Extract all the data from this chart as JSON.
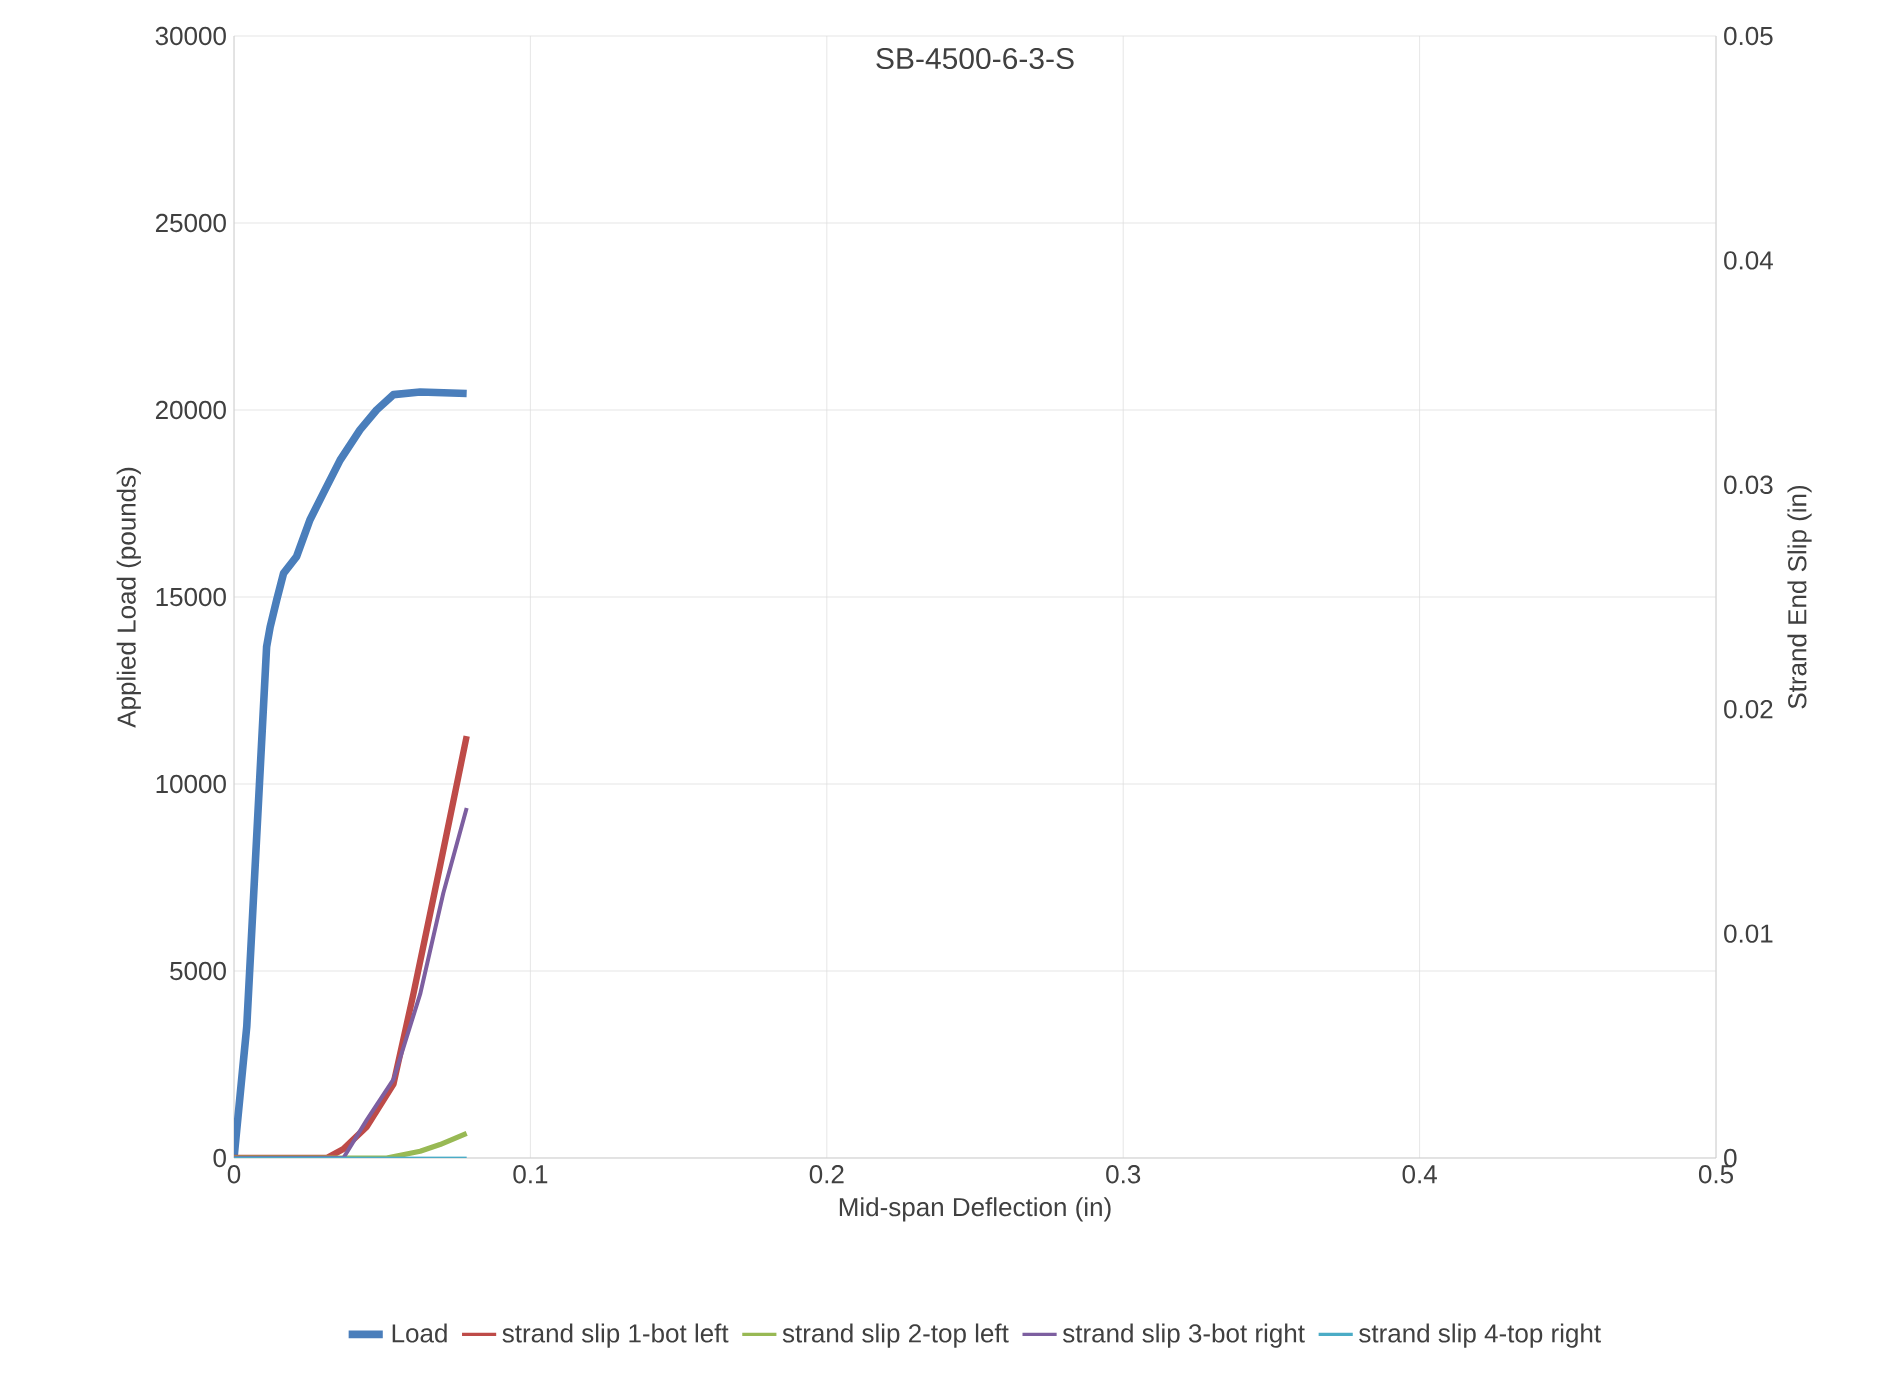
{
  "chart_data": {
    "type": "line",
    "title": "SB-4500-6-3-S",
    "xlabel": "Mid-span Deflection (in)",
    "ylabel": "Applied Load (pounds)",
    "y2label": "Strand End Slip (in)",
    "xlim": [
      0,
      0.5
    ],
    "xticks": [
      0,
      0.1,
      0.2,
      0.3,
      0.4,
      0.5
    ],
    "ylim": [
      0,
      30000
    ],
    "yticks": [
      0,
      5000,
      10000,
      15000,
      20000,
      25000,
      30000
    ],
    "y2lim": [
      0,
      0.05
    ],
    "y2ticks": [
      0,
      0.01,
      0.02,
      0.03,
      0.04,
      0.05
    ],
    "grid": true,
    "legend": "bottom",
    "marker": "none",
    "line_style": "solid",
    "series": [
      {
        "name": "Load",
        "color": "#4a7ebb",
        "x": [
          0,
          0.0043,
          0.011,
          0.0122,
          0.0144,
          0.0167,
          0.0211,
          0.0256,
          0.0301,
          0.0358,
          0.0425,
          0.0481,
          0.0538,
          0.0628,
          0.0785
        ],
        "values": [
          0,
          3510,
          13670,
          14200,
          14920,
          15630,
          16080,
          17060,
          17770,
          18660,
          19470,
          20000,
          20410,
          20480,
          20440
        ]
      },
      {
        "name": "strand slip 1-bot left",
        "color": "#be4b48",
        "axis": "y2",
        "x": [
          0,
          0.0313,
          0.0369,
          0.0448,
          0.0538,
          0.0605,
          0.0695,
          0.0785
        ],
        "values": [
          0,
          0,
          0.0004,
          0.0014,
          0.0033,
          0.0073,
          0.013,
          0.0188
        ]
      },
      {
        "name": "strand slip 2-top left",
        "color": "#98b954",
        "axis": "y2",
        "x": [
          0,
          0.0515,
          0.0628,
          0.0695,
          0.0785
        ],
        "values": [
          0,
          0,
          0.0003,
          0.0006,
          0.0011
        ]
      },
      {
        "name": "strand slip 3-bot right",
        "color": "#7d5fa0",
        "axis": "y2",
        "x": [
          0,
          0.0369,
          0.0448,
          0.0538,
          0.0628,
          0.0706,
          0.0785
        ],
        "values": [
          0,
          0,
          0.0017,
          0.0035,
          0.0073,
          0.0118,
          0.0156
        ]
      },
      {
        "name": "strand slip 4-top right",
        "color": "#4bacc6",
        "axis": "y2",
        "x": [
          0,
          0.0785
        ],
        "values": [
          0,
          0
        ]
      }
    ]
  }
}
